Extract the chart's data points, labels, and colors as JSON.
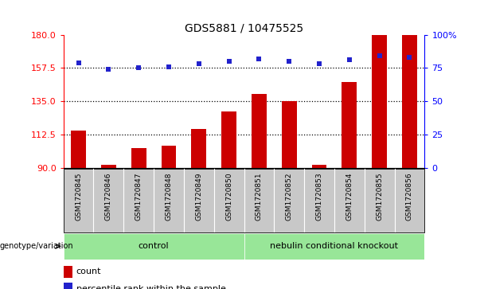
{
  "title": "GDS5881 / 10475525",
  "samples": [
    "GSM1720845",
    "GSM1720846",
    "GSM1720847",
    "GSM1720848",
    "GSM1720849",
    "GSM1720850",
    "GSM1720851",
    "GSM1720852",
    "GSM1720853",
    "GSM1720854",
    "GSM1720855",
    "GSM1720856"
  ],
  "counts": [
    115,
    92,
    103,
    105,
    116,
    128,
    140,
    135,
    92,
    148,
    180,
    180
  ],
  "percentiles": [
    79,
    74,
    75,
    76,
    78,
    80,
    82,
    80,
    78,
    81,
    84,
    83
  ],
  "ymin": 90,
  "ymax": 180,
  "yticks_left": [
    90,
    112.5,
    135,
    157.5,
    180
  ],
  "yticks_right": [
    0,
    25,
    50,
    75,
    100
  ],
  "n_control": 6,
  "n_knockout": 6,
  "control_label": "control",
  "knockout_label": "nebulin conditional knockout",
  "group_row_label": "genotype/variation",
  "legend_count_label": "count",
  "legend_pct_label": "percentile rank within the sample",
  "bar_color": "#cc0000",
  "dot_color": "#2222cc",
  "control_bg": "#98e698",
  "knockout_bg": "#98e698",
  "tick_bg": "#c8c8c8",
  "hline_values": [
    112.5,
    135,
    157.5
  ],
  "bar_width": 0.5
}
